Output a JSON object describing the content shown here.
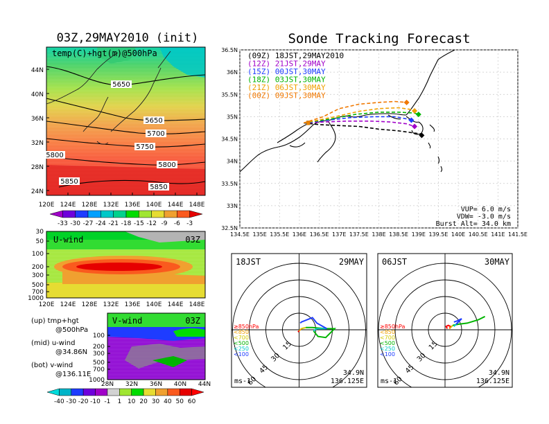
{
  "left_title": "03Z,29MAY2010 (init)",
  "right_title": "Sonde Tracking Forecast",
  "map500": {
    "panel_label": "temp(C)+hgt(m)@500hPa",
    "lat_ticks": [
      "44N",
      "40N",
      "36N",
      "32N",
      "28N",
      "24N"
    ],
    "lon_ticks": [
      "120E",
      "124E",
      "128E",
      "132E",
      "136E",
      "140E",
      "144E",
      "148E"
    ],
    "contour_labels": [
      "5650",
      "5650",
      "5700",
      "5750",
      "5800",
      "5850",
      "5850",
      "5800"
    ],
    "colorbar_ticks": [
      "-33",
      "-30",
      "-27",
      "-24",
      "-21",
      "-18",
      "-15",
      "-12",
      "-9",
      "-6",
      "-3"
    ],
    "colorbar_colors": [
      "#a000c8",
      "#6e00dc",
      "#1e3cff",
      "#00a0ff",
      "#00c8c8",
      "#00d28c",
      "#00dc00",
      "#a0e632",
      "#e6dc32",
      "#f0a030",
      "#fa5a1e",
      "#e60000"
    ]
  },
  "uwind": {
    "label": "U-wind",
    "time_label": "03Z",
    "pressure_ticks": [
      "30",
      "50",
      "100",
      "200",
      "300",
      "500",
      "700",
      "1000"
    ],
    "lon_ticks": [
      "120E",
      "124E",
      "128E",
      "132E",
      "136E",
      "140E",
      "144E",
      "148E"
    ]
  },
  "vwind": {
    "label": "V-wind",
    "time_label": "03Z",
    "pressure_ticks": [
      "100",
      "200",
      "300",
      "500",
      "700",
      "1000"
    ],
    "lat_ticks": [
      "28N",
      "32N",
      "36N",
      "40N",
      "44N"
    ]
  },
  "notes": [
    {
      "line1": "(up) tmp+hgt",
      "line2": "@500hPa"
    },
    {
      "line1": "(mid) u-wind",
      "line2": "@34.86N"
    },
    {
      "line1": "(bot) v-wind",
      "line2": "@136.11E"
    }
  ],
  "wind_colorbar": {
    "ticks": [
      "-40",
      "-30",
      "-20",
      "-10",
      "-1",
      "1",
      "10",
      "20",
      "30",
      "40",
      "50",
      "60"
    ],
    "colors": [
      "#00dcdc",
      "#00b4c8",
      "#1e3cff",
      "#6e00dc",
      "#a000c8",
      "#d2d2d2",
      "#a0e632",
      "#00dc00",
      "#e6dc32",
      "#f0a030",
      "#fa5a1e",
      "#e60000",
      "#ff0000"
    ]
  },
  "chart_data": [
    {
      "type": "line",
      "title": "Sonde Tracking Forecast",
      "xlabel": "",
      "ylabel": "",
      "xlim": [
        134.5,
        141.5
      ],
      "ylim": [
        32.5,
        36.5
      ],
      "x_ticks": [
        "134.5E",
        "135E",
        "135.5E",
        "136E",
        "136.5E",
        "137E",
        "137.5E",
        "138E",
        "138.5E",
        "139E",
        "139.5E",
        "140E",
        "140.5E",
        "141E",
        "141.5E"
      ],
      "y_ticks": [
        "32.5N",
        "33N",
        "33.5N",
        "34N",
        "34.5N",
        "35N",
        "35.5N",
        "36N",
        "36.5N"
      ],
      "grid": true,
      "legend_position": "top-left",
      "series": [
        {
          "name": "(09Z)  18JST,29MAY2010",
          "color": "#000000",
          "points": [
            [
              136.11,
              34.86
            ],
            [
              136.5,
              34.82
            ],
            [
              137.0,
              34.8
            ],
            [
              137.5,
              34.78
            ],
            [
              138.0,
              34.72
            ],
            [
              138.5,
              34.68
            ],
            [
              139.0,
              34.62
            ],
            [
              139.08,
              34.58
            ]
          ]
        },
        {
          "name": "(12Z)  21JST,29MAY",
          "color": "#a000c8",
          "points": [
            [
              136.11,
              34.86
            ],
            [
              136.6,
              34.88
            ],
            [
              137.2,
              34.9
            ],
            [
              137.8,
              34.9
            ],
            [
              138.3,
              34.88
            ],
            [
              138.7,
              34.84
            ],
            [
              138.9,
              34.78
            ]
          ]
        },
        {
          "name": "(15Z)  00JST,30MAY",
          "color": "#1e3cff",
          "points": [
            [
              136.11,
              34.86
            ],
            [
              136.7,
              34.92
            ],
            [
              137.3,
              34.98
            ],
            [
              137.9,
              35.0
            ],
            [
              138.4,
              35.0
            ],
            [
              138.7,
              34.95
            ],
            [
              138.82,
              34.92
            ]
          ]
        },
        {
          "name": "(18Z)  03JST,30MAY",
          "color": "#00b400",
          "points": [
            [
              136.11,
              34.86
            ],
            [
              136.8,
              34.95
            ],
            [
              137.4,
              35.05
            ],
            [
              138.0,
              35.1
            ],
            [
              138.5,
              35.1
            ],
            [
              138.9,
              35.08
            ],
            [
              139.0,
              35.05
            ]
          ]
        },
        {
          "name": "(21Z)  06JST,30MAY",
          "color": "#f0a000",
          "points": [
            [
              136.11,
              34.86
            ],
            [
              136.9,
              35.0
            ],
            [
              137.5,
              35.12
            ],
            [
              138.0,
              35.18
            ],
            [
              138.5,
              35.2
            ],
            [
              138.82,
              35.16
            ],
            [
              138.9,
              35.13
            ]
          ]
        },
        {
          "name": "(00Z)  09JST,30MAY",
          "color": "#f07800",
          "points": [
            [
              136.11,
              34.86
            ],
            [
              136.6,
              35.0
            ],
            [
              137.0,
              35.18
            ],
            [
              137.5,
              35.28
            ],
            [
              138.0,
              35.32
            ],
            [
              138.4,
              35.34
            ],
            [
              138.7,
              35.32
            ]
          ]
        }
      ],
      "annotations": [
        "VUP=  6.0  m/s",
        "VDW= -3.0  m/s",
        "Burst Alt= 34.0  km"
      ]
    },
    {
      "type": "scatter",
      "title": "18JST",
      "date_label": "29MAY",
      "loc_label": "34.9N",
      "lon_label": "136.125E",
      "unit_label": "ms-1",
      "ring_labels": [
        "15",
        "30",
        "45",
        "60"
      ],
      "legend": [
        {
          "label": "≥850hPa",
          "color": "#ff0000"
        },
        {
          "label": "<850",
          "color": "#f0a000"
        },
        {
          "label": "<700",
          "color": "#d2c800"
        },
        {
          "label": "<500",
          "color": "#00b400"
        },
        {
          "label": "<250",
          "color": "#00c8c8"
        },
        {
          "label": "<100",
          "color": "#1e3cff"
        }
      ],
      "hodograph": [
        {
          "level": "≥850hPa",
          "color": "#ff0000",
          "points": [
            [
              -1,
              -2
            ],
            [
              0,
              -1
            ]
          ]
        },
        {
          "level": "<850",
          "color": "#f0a000",
          "points": [
            [
              0,
              -1
            ],
            [
              2,
              1
            ]
          ]
        },
        {
          "level": "<700",
          "color": "#d2c800",
          "points": [
            [
              2,
              1
            ],
            [
              6,
              2
            ]
          ]
        },
        {
          "level": "<500",
          "color": "#00b400",
          "points": [
            [
              6,
              2
            ],
            [
              12,
              2
            ],
            [
              24,
              1
            ],
            [
              32,
              1
            ],
            [
              24,
              -7
            ],
            [
              17,
              -6
            ],
            [
              13,
              -1
            ]
          ]
        },
        {
          "level": "<250",
          "color": "#00c8c8",
          "points": [
            [
              13,
              -1
            ],
            [
              16,
              1
            ],
            [
              25,
              1
            ]
          ]
        },
        {
          "level": "<100",
          "color": "#1e3cff",
          "points": [
            [
              25,
              1
            ],
            [
              16,
              6
            ],
            [
              12,
              11
            ],
            [
              2,
              7
            ],
            [
              1,
              6
            ]
          ]
        }
      ]
    },
    {
      "type": "scatter",
      "title": "06JST",
      "date_label": "30MAY",
      "loc_label": "34.9N",
      "lon_label": "136.125E",
      "unit_label": "ms-1",
      "ring_labels": [
        "15",
        "30",
        "45",
        "60"
      ],
      "legend": [
        {
          "label": "≥850hPa",
          "color": "#ff0000"
        },
        {
          "label": "<850",
          "color": "#f0a000"
        },
        {
          "label": "<700",
          "color": "#d2c800"
        },
        {
          "label": "<500",
          "color": "#00b400"
        },
        {
          "label": "<250",
          "color": "#00c8c8"
        },
        {
          "label": "<100",
          "color": "#1e3cff"
        }
      ],
      "hodograph": [
        {
          "level": "≥850hPa",
          "color": "#ff0000",
          "points": [
            [
              2,
              1
            ],
            [
              1,
              3
            ],
            [
              3,
              4
            ],
            [
              5,
              3
            ],
            [
              4,
              1
            ]
          ]
        },
        {
          "level": "<850",
          "color": "#f0a000",
          "points": [
            [
              4,
              1
            ],
            [
              5,
              2
            ]
          ]
        },
        {
          "level": "<700",
          "color": "#d2c800",
          "points": [
            [
              5,
              2
            ],
            [
              7,
              4
            ]
          ]
        },
        {
          "level": "<500",
          "color": "#00b400",
          "points": [
            [
              7,
              4
            ],
            [
              12,
              5
            ],
            [
              20,
              6
            ],
            [
              30,
              9
            ],
            [
              36,
              12
            ]
          ]
        },
        {
          "level": "<250",
          "color": "#00c8c8",
          "points": [
            [
              8,
              3
            ],
            [
              10,
              5
            ]
          ]
        },
        {
          "level": "<100",
          "color": "#1e3cff",
          "points": [
            [
              10,
              5
            ],
            [
              15,
              10
            ],
            [
              11,
              8
            ],
            [
              8,
              7
            ]
          ]
        }
      ]
    }
  ]
}
